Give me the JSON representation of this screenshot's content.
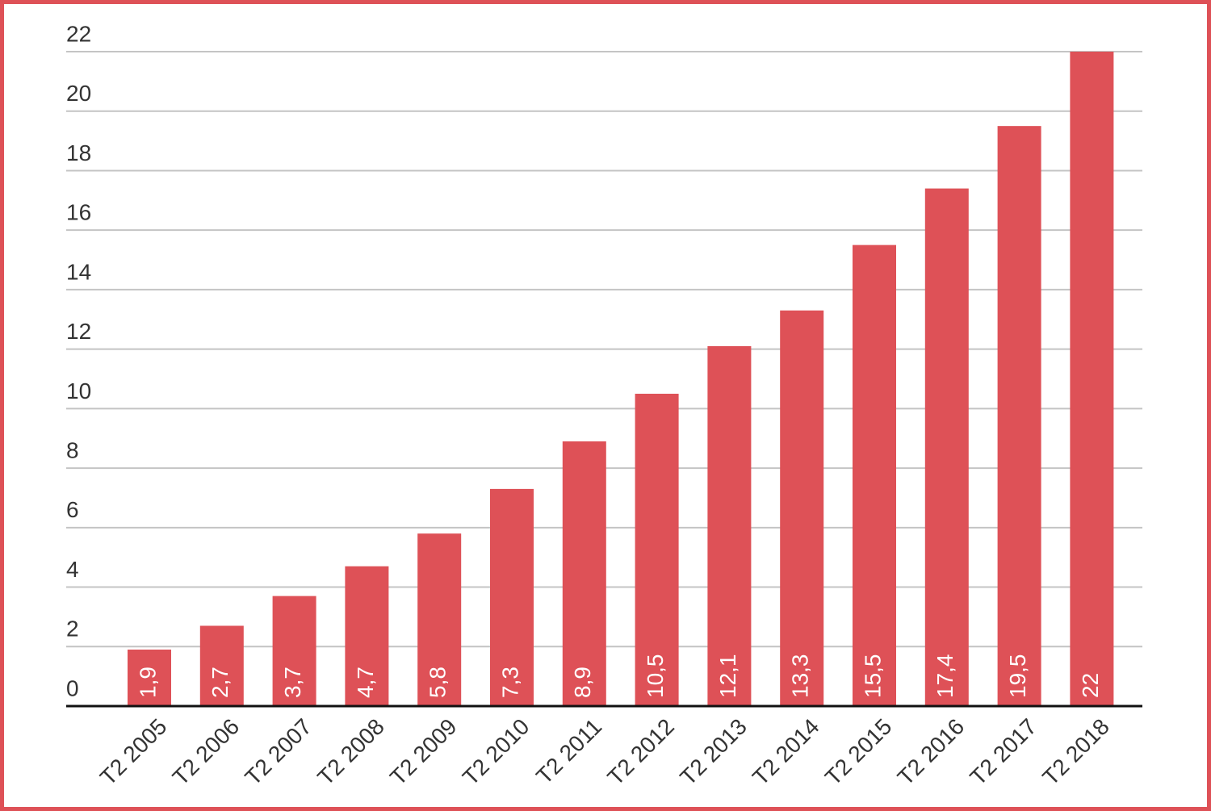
{
  "chart_data": {
    "type": "bar",
    "categories": [
      "T2 2005",
      "T2 2006",
      "T2 2007",
      "T2 2008",
      "T2 2009",
      "T2 2010",
      "T2 2011",
      "T2 2012",
      "T2 2013",
      "T2 2014",
      "T2 2015",
      "T2 2016",
      "T2 2017",
      "T2 2018"
    ],
    "values": [
      1.9,
      2.7,
      3.7,
      4.7,
      5.8,
      7.3,
      8.9,
      10.5,
      12.1,
      13.3,
      15.5,
      17.4,
      19.5,
      22
    ],
    "value_labels": [
      "1,9",
      "2,7",
      "3,7",
      "4,7",
      "5,8",
      "7,3",
      "8,9",
      "10,5",
      "12,1",
      "13,3",
      "15,5",
      "17,4",
      "19,5",
      "22"
    ],
    "color": "#de5157",
    "ylim": [
      0,
      22
    ],
    "yticks": [
      0,
      2,
      4,
      6,
      8,
      10,
      12,
      14,
      16,
      18,
      20,
      22
    ],
    "grid": true
  }
}
